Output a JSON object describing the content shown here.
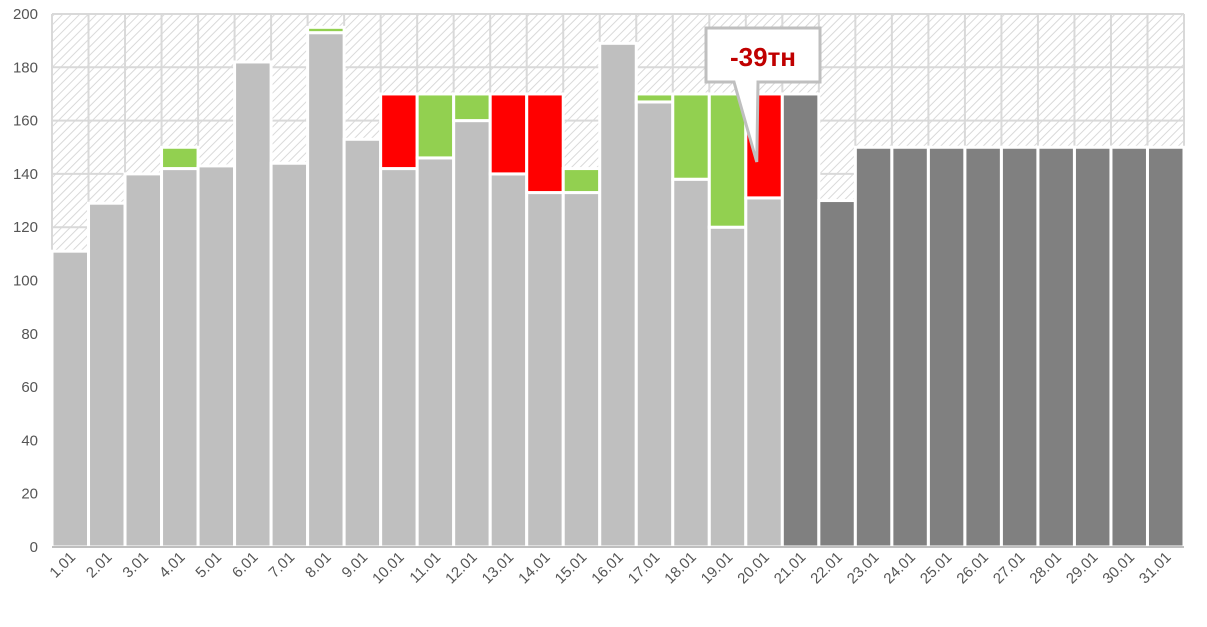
{
  "chart_data": {
    "type": "bar",
    "stacked": true,
    "categories": [
      "1.01",
      "2.01",
      "3.01",
      "4.01",
      "5.01",
      "6.01",
      "7.01",
      "8.01",
      "9.01",
      "10.01",
      "11.01",
      "12.01",
      "13.01",
      "14.01",
      "15.01",
      "16.01",
      "17.01",
      "18.01",
      "19.01",
      "20.01",
      "21.01",
      "22.01",
      "23.01",
      "24.01",
      "25.01",
      "26.01",
      "27.01",
      "28.01",
      "29.01",
      "30.01",
      "31.01"
    ],
    "series": [
      {
        "color": "#bfbfbf",
        "values": [
          111,
          129,
          140,
          142,
          143,
          182,
          144,
          193,
          153,
          142,
          146,
          160,
          140,
          133,
          133,
          189,
          167,
          138,
          120,
          131,
          null,
          null,
          null,
          null,
          null,
          null,
          null,
          null,
          null,
          null,
          null
        ]
      },
      {
        "color": "#808080",
        "values": [
          null,
          null,
          null,
          null,
          null,
          null,
          null,
          null,
          null,
          null,
          null,
          null,
          null,
          null,
          null,
          null,
          null,
          null,
          null,
          null,
          170,
          130,
          150,
          150,
          150,
          150,
          150,
          150,
          150,
          150,
          150
        ]
      },
      {
        "color": "#92d050",
        "values": [
          0,
          0,
          0,
          8,
          0,
          0,
          0,
          2,
          0,
          0,
          24,
          10,
          0,
          0,
          9,
          0,
          3,
          32,
          50,
          0,
          0,
          0,
          0,
          0,
          0,
          0,
          0,
          0,
          0,
          0,
          0
        ]
      },
      {
        "color": "#ff0000",
        "values": [
          0,
          0,
          0,
          0,
          0,
          0,
          0,
          0,
          0,
          28,
          0,
          0,
          30,
          37,
          0,
          0,
          0,
          0,
          0,
          39,
          0,
          0,
          0,
          0,
          0,
          0,
          0,
          0,
          0,
          0,
          0
        ]
      }
    ],
    "yticks": [
      "0",
      "20",
      "40",
      "60",
      "80",
      "100",
      "120",
      "140",
      "160",
      "180",
      "200"
    ],
    "ylim": [
      0,
      200
    ],
    "grid": true,
    "background_pattern": "diagonal-hatch",
    "callout": {
      "text": "-39тн",
      "category": "20.01"
    }
  }
}
